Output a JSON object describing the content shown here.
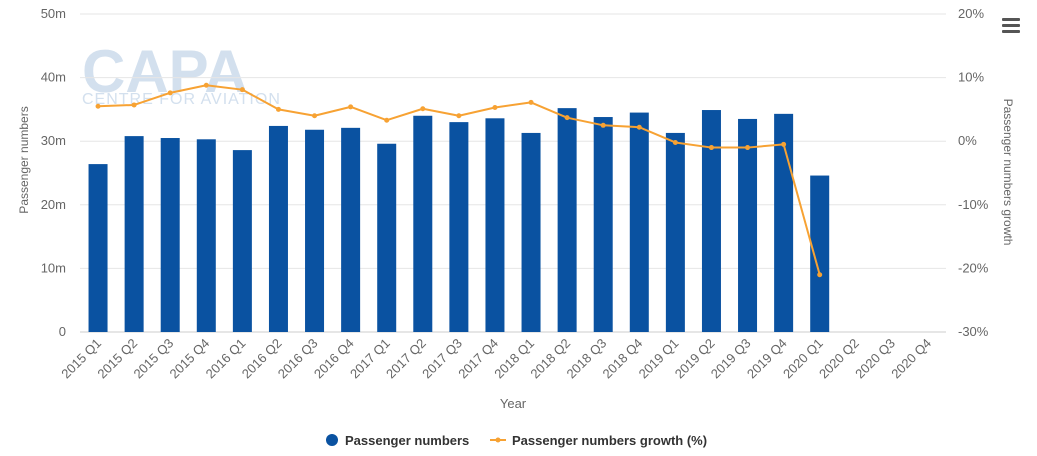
{
  "logo": {
    "name": "CAPA",
    "tagline": "CENTRE FOR AVIATION"
  },
  "menu": {
    "icon": "hamburger-menu-icon"
  },
  "chart_data": {
    "type": "bar",
    "categories": [
      "2015 Q1",
      "2015 Q2",
      "2015 Q3",
      "2015 Q4",
      "2016 Q1",
      "2016 Q2",
      "2016 Q3",
      "2016 Q4",
      "2017 Q1",
      "2017 Q2",
      "2017 Q3",
      "2017 Q4",
      "2018 Q1",
      "2018 Q2",
      "2018 Q3",
      "2018 Q4",
      "2019 Q1",
      "2019 Q2",
      "2019 Q3",
      "2019 Q4",
      "2020 Q1",
      "2020 Q2",
      "2020 Q3",
      "2020 Q4"
    ],
    "xlabel": "Year",
    "ylabel": "Passenger numbers",
    "y2label": "Passenger numbers growth",
    "ylim": [
      0,
      50
    ],
    "y2lim": [
      -30,
      20
    ],
    "yticks": [
      "0",
      "10m",
      "20m",
      "30m",
      "40m",
      "50m"
    ],
    "y2ticks": [
      "-30%",
      "-20%",
      "-10%",
      "0%",
      "10%",
      "20%"
    ],
    "grid": true,
    "legend_position": "bottom-center",
    "series": [
      {
        "name": "Passenger numbers",
        "type": "bar",
        "axis": "left",
        "color": "#0a52a1",
        "values": [
          26.4,
          30.8,
          30.5,
          30.3,
          28.6,
          32.4,
          31.8,
          32.1,
          29.6,
          34.0,
          33.0,
          33.6,
          31.3,
          35.2,
          33.8,
          34.5,
          31.3,
          34.9,
          33.5,
          34.3,
          24.6,
          null,
          null,
          null
        ]
      },
      {
        "name": "Passenger numbers growth (%)",
        "type": "line",
        "axis": "right",
        "color": "#f7a233",
        "values": [
          5.5,
          5.7,
          7.6,
          8.8,
          8.1,
          5.0,
          4.0,
          5.4,
          3.3,
          5.1,
          4.0,
          5.3,
          6.1,
          3.7,
          2.5,
          2.2,
          -0.2,
          -1.0,
          -1.0,
          -0.5,
          -21.0,
          null,
          null,
          null
        ]
      }
    ]
  }
}
